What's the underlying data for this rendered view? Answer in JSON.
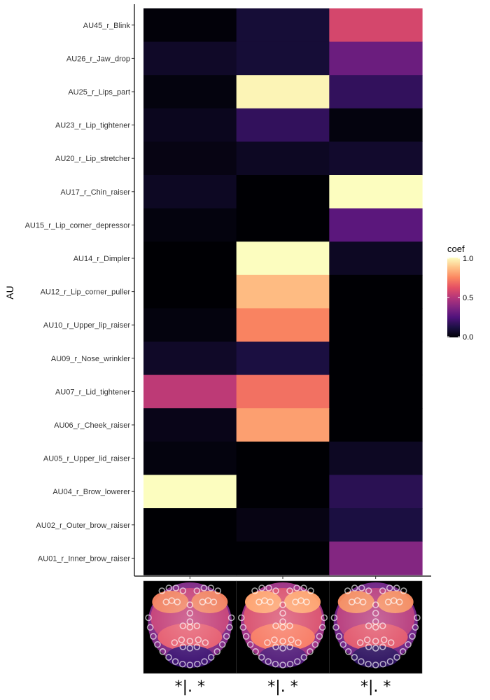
{
  "chart_data": {
    "type": "heatmap",
    "ylabel": "AU",
    "xlabel": "",
    "y_categories": [
      "AU45_r_Blink",
      "AU26_r_Jaw_drop",
      "AU25_r_Lips_part",
      "AU23_r_Lip_tightener",
      "AU20_r_Lip_stretcher",
      "AU17_r_Chin_raiser",
      "AU15_r_Lip_corner_depressor",
      "AU14_r_Dimpler",
      "AU12_r_Lip_corner_puller",
      "AU10_r_Upper_lip_raiser",
      "AU09_r_Nose_wrinkler",
      "AU07_r_Lid_tightener",
      "AU06_r_Cheek_raiser",
      "AU05_r_Upper_lid_raiser",
      "AU04_r_Brow_lowerer",
      "AU02_r_Outer_brow_raiser",
      "AU01_r_Inner_brow_raiser"
    ],
    "x_categories": [
      "*|. *",
      "*|. *",
      "*|. *"
    ],
    "values": [
      [
        0.01,
        0.1,
        0.58
      ],
      [
        0.07,
        0.1,
        0.32
      ],
      [
        0.02,
        0.98,
        0.18
      ],
      [
        0.05,
        0.18,
        0.02
      ],
      [
        0.03,
        0.06,
        0.08
      ],
      [
        0.06,
        0.0,
        1.0
      ],
      [
        0.02,
        0.0,
        0.28
      ],
      [
        0.0,
        1.0,
        0.06
      ],
      [
        0.0,
        0.86,
        0.0
      ],
      [
        0.02,
        0.74,
        0.0
      ],
      [
        0.07,
        0.12,
        0.0
      ],
      [
        0.52,
        0.7,
        0.0
      ],
      [
        0.04,
        0.8,
        0.0
      ],
      [
        0.02,
        0.0,
        0.06
      ],
      [
        1.0,
        0.0,
        0.16
      ],
      [
        0.0,
        0.03,
        0.12
      ],
      [
        0.0,
        0.0,
        0.38
      ]
    ],
    "legend": {
      "title": "coef",
      "ticks": [
        "1.0",
        "0.5",
        "0.0"
      ],
      "range": [
        0,
        1
      ],
      "position": "right"
    },
    "colormap": "magma",
    "colors": {
      "low": "#000004",
      "mid": "#b73779",
      "high": "#fcfdbf"
    },
    "grid": false
  }
}
